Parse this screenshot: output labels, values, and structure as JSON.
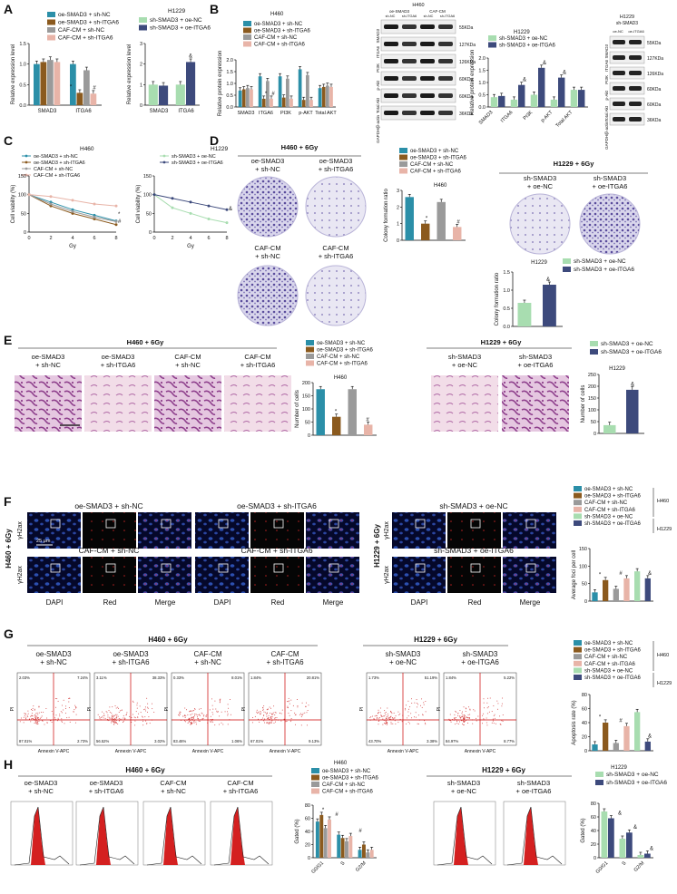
{
  "colors": {
    "c1": "#2B8FA8",
    "c2": "#8B5A1E",
    "c3": "#9A9A9A",
    "c4": "#E8B4A8",
    "g1": "#A8DDB0",
    "g2": "#3D4A7C",
    "bar": "#bb1d1d"
  },
  "legend_h460": [
    "oe-SMAD3 + sh-NC",
    "oe-SMAD3 + sh-ITGA6",
    "CAF-CM + sh-NC",
    "CAF-CM + sh-ITGA6"
  ],
  "legend_h1229": [
    "sh-SMAD3 + oe-NC",
    "sh-SMAD3 + oe-ITGA6"
  ],
  "cell_h460": "H460",
  "cell_h1229": "H1229",
  "panelA": {
    "letter": "A",
    "ylabel": "Relative expression level",
    "xcats": [
      "SMAD3",
      "ITGA6"
    ],
    "sig": [
      "*",
      "#"
    ],
    "sig2": [
      "&"
    ]
  },
  "panelB": {
    "letter": "B",
    "ylabel": "Relative protein expression",
    "xcats": [
      "SMAD3",
      "ITGA6",
      "PI3K",
      "p-AKT",
      "Total AKT"
    ],
    "sig": [
      "*",
      "#"
    ],
    "sig2": [
      "&"
    ],
    "blot_left_header": [
      "H460",
      "oe-SMAD3",
      "CAF-CM",
      "sh-NC",
      "sh-ITGA6",
      "sh-NC",
      "sh-ITGA6"
    ],
    "blot_rows": [
      "SMAD3",
      "ITGA6",
      "PI3K",
      "p-Akt",
      "Total Akt",
      "GAPDH/β-actin"
    ],
    "blot_kda": [
      "55KDa",
      "127KDa",
      "126KDa",
      "60KDa",
      "60KDa",
      "36KDa"
    ],
    "blot_right_header": [
      "H1229",
      "sh-SMAD3",
      "oe-NC",
      "oe-ITGA6"
    ]
  },
  "panelC": {
    "letter": "C",
    "ylabel": "Cell viability (%)",
    "xlabel": "Gy",
    "xticks": [
      "0",
      "2",
      "4",
      "6",
      "8"
    ],
    "yticks": [
      "0",
      "50",
      "100",
      "150"
    ],
    "sig": [
      "*",
      "#"
    ],
    "sig2": [
      "&"
    ]
  },
  "panelD": {
    "letter": "D",
    "title_h460": "H460 + 6Gy",
    "title_h1229": "H1229 + 6Gy",
    "labels": [
      "oe-SMAD3\n+ sh-NC",
      "oe-SMAD3\n+ sh-ITGA6",
      "CAF-CM\n+ sh-NC",
      "CAF-CM\n+ sh-ITGA6"
    ],
    "labels_h1229": [
      "sh-SMAD3\n+ oe-NC",
      "sh-SMAD3\n+ oe-ITGA6"
    ],
    "ylabel": "Colony formation ratio",
    "yticks": [
      "0",
      "1",
      "2",
      "3"
    ],
    "yticks2": [
      "0.0",
      "0.5",
      "1.0",
      "1.5"
    ],
    "sig": [
      "*",
      "#"
    ],
    "sig2": [
      "&"
    ]
  },
  "panelE": {
    "letter": "E",
    "title_h460": "H460 + 6Gy",
    "title_h1229": "H1229 + 6Gy",
    "labels": [
      "oe-SMAD3\n+ sh-NC",
      "oe-SMAD3\n+ sh-ITGA6",
      "CAF-CM\n+ sh-NC",
      "CAF-CM\n+ sh-ITGA6"
    ],
    "labels_h1229": [
      "sh-SMAD3\n+ oe-NC",
      "sh-SMAD3\n+ oe-ITGA6"
    ],
    "ylabel": "Number of cells",
    "yticks": [
      "0",
      "50",
      "100",
      "150",
      "200"
    ],
    "yticks2": [
      "0",
      "50",
      "100",
      "150",
      "200",
      "250"
    ],
    "sig": [
      "*",
      "#"
    ],
    "sig2": [
      "&"
    ]
  },
  "panelF": {
    "letter": "F",
    "groups": [
      "oe-SMAD3 + sh-NC",
      "oe-SMAD3 + sh-ITGA6",
      "CAF-CM + sh-NC",
      "CAF-CM + sh-ITGA6",
      "sh-SMAD3 + oe-NC",
      "sh-SMAD3 + oe-ITGA6"
    ],
    "cols": [
      "DAPI",
      "Red",
      "Merge"
    ],
    "scale": "25 μm",
    "row_label": "H460 + 6Gy",
    "row_label2": "H1229 + 6Gy",
    "marker": "γH2ax",
    "ylabel": "Average foci per cell",
    "yticks": [
      "0",
      "50",
      "100",
      "150"
    ],
    "sig": [
      "*",
      "#"
    ],
    "sig2": [
      "&"
    ]
  },
  "panelG": {
    "letter": "G",
    "title_h460": "H460 + 6Gy",
    "title_h1229": "H1229 + 6Gy",
    "labels": [
      "oe-SMAD3\n+ sh-NC",
      "oe-SMAD3\n+ sh-ITGA6",
      "CAF-CM\n+ sh-NC",
      "CAF-CM\n+ sh-ITGA6",
      "sh-SMAD3\n+ oe-NC",
      "sh-SMAD3\n+ oe-ITGA6"
    ],
    "xlab": "Annexin V-APC",
    "ylab": "PI",
    "quads": [
      [
        "2.03%",
        "7.24%",
        "87.01%",
        "2.73%"
      ],
      [
        "3.11%",
        "38.33%",
        "56.52%",
        "3.02%"
      ],
      [
        "0.33%",
        "8.01%",
        "83.46%",
        "1.06%"
      ],
      [
        "1.84%",
        "20.81%",
        "67.01%",
        "9.13%"
      ],
      [
        "1.73%",
        "51.19%",
        "43.70%",
        "3.38%"
      ],
      [
        "1.84%",
        "5.22%",
        "84.97%",
        "8.77%"
      ]
    ],
    "ylabel": "Apoptosis rate (%)",
    "yticks": [
      "0",
      "20",
      "40",
      "60",
      "80"
    ],
    "sig": [
      "*",
      "#"
    ],
    "sig2": [
      "&"
    ]
  },
  "panelH": {
    "letter": "H",
    "title_h460": "H460 + 6Gy",
    "title_h1229": "H1229 + 6Gy",
    "labels": [
      "oe-SMAD3\n+ sh-NC",
      "oe-SMAD3\n+ sh-ITGA6",
      "CAF-CM\n+ sh-NC",
      "CAF-CM\n+ sh-ITGA6",
      "sh-SMAD3\n+ oe-NC",
      "sh-SMAD3\n+ oe-ITGA6"
    ],
    "xcats": [
      "G0/G1",
      "S",
      "G2/M"
    ],
    "ylabel": "Gated (%)",
    "yticks": [
      "0",
      "20",
      "40",
      "60",
      "80"
    ],
    "sig": [
      "*",
      "#"
    ],
    "sig2": [
      "&"
    ]
  },
  "chart_data": [
    {
      "type": "bar",
      "panel": "A",
      "title": "H460",
      "categories": [
        "SMAD3",
        "ITGA6"
      ],
      "ylim": [
        0,
        1.5
      ],
      "series": [
        {
          "name": "oe-SMAD3 + sh-NC",
          "values": [
            1.0,
            1.0
          ]
        },
        {
          "name": "oe-SMAD3 + sh-ITGA6",
          "values": [
            1.05,
            0.3
          ]
        },
        {
          "name": "CAF-CM + sh-NC",
          "values": [
            1.1,
            0.85
          ]
        },
        {
          "name": "CAF-CM + sh-ITGA6",
          "values": [
            1.05,
            0.28
          ]
        }
      ]
    },
    {
      "type": "bar",
      "panel": "A",
      "title": "H1229",
      "categories": [
        "SMAD3",
        "ITGA6"
      ],
      "ylim": [
        0,
        3
      ],
      "series": [
        {
          "name": "sh-SMAD3 + oe-NC",
          "values": [
            1.0,
            1.0
          ]
        },
        {
          "name": "sh-SMAD3 + oe-ITGA6",
          "values": [
            0.95,
            2.1
          ]
        }
      ]
    },
    {
      "type": "bar",
      "panel": "B",
      "title": "H460",
      "categories": [
        "SMAD3",
        "ITGA6",
        "PI3K",
        "p-AKT",
        "Total AKT"
      ],
      "ylim": [
        0,
        2
      ],
      "series": [
        {
          "name": "oe-SMAD3 + sh-NC",
          "values": [
            0.7,
            1.3,
            1.3,
            1.6,
            0.8
          ]
        },
        {
          "name": "oe-SMAD3 + sh-ITGA6",
          "values": [
            0.75,
            0.35,
            0.4,
            0.3,
            0.85
          ]
        },
        {
          "name": "CAF-CM + sh-NC",
          "values": [
            0.8,
            1.1,
            1.2,
            1.35,
            0.9
          ]
        },
        {
          "name": "CAF-CM + sh-ITGA6",
          "values": [
            0.75,
            0.35,
            0.35,
            0.3,
            0.85
          ]
        }
      ]
    },
    {
      "type": "bar",
      "panel": "B",
      "title": "H1229",
      "categories": [
        "SMAD3",
        "ITGA6",
        "PI3K",
        "p-AKT",
        "Total AKT"
      ],
      "ylim": [
        0,
        2
      ],
      "series": [
        {
          "name": "sh-SMAD3 + oe-NC",
          "values": [
            0.4,
            0.3,
            0.5,
            0.3,
            0.7
          ]
        },
        {
          "name": "sh-SMAD3 + oe-ITGA6",
          "values": [
            0.45,
            0.9,
            1.6,
            1.2,
            0.7
          ]
        }
      ]
    },
    {
      "type": "line",
      "panel": "C",
      "title": "H460",
      "x": [
        0,
        2,
        4,
        6,
        8
      ],
      "ylim": [
        0,
        150
      ],
      "series": [
        {
          "name": "oe-SMAD3 + sh-NC",
          "values": [
            100,
            80,
            60,
            45,
            30
          ]
        },
        {
          "name": "oe-SMAD3 + sh-ITGA6",
          "values": [
            100,
            70,
            50,
            35,
            20
          ]
        },
        {
          "name": "CAF-CM + sh-NC",
          "values": [
            100,
            75,
            55,
            40,
            28
          ]
        },
        {
          "name": "CAF-CM + sh-ITGA6",
          "values": [
            100,
            95,
            85,
            75,
            70
          ]
        }
      ]
    },
    {
      "type": "line",
      "panel": "C",
      "title": "H1229",
      "x": [
        0,
        2,
        4,
        6,
        8
      ],
      "ylim": [
        0,
        150
      ],
      "series": [
        {
          "name": "sh-SMAD3 + oe-NC",
          "values": [
            100,
            65,
            50,
            35,
            25
          ]
        },
        {
          "name": "sh-SMAD3 + oe-ITGA6",
          "values": [
            100,
            90,
            80,
            70,
            60
          ]
        }
      ]
    },
    {
      "type": "bar",
      "panel": "D",
      "title": "H460",
      "categories": [
        "oe-SMAD3 + sh-NC",
        "oe-SMAD3 + sh-ITGA6",
        "CAF-CM + sh-NC",
        "CAF-CM + sh-ITGA6"
      ],
      "values": [
        2.6,
        1.0,
        2.3,
        0.8
      ],
      "ylim": [
        0,
        3
      ]
    },
    {
      "type": "bar",
      "panel": "D",
      "title": "H1229",
      "categories": [
        "sh-SMAD3 + oe-NC",
        "sh-SMAD3 + oe-ITGA6"
      ],
      "values": [
        0.65,
        1.15
      ],
      "ylim": [
        0,
        1.5
      ]
    },
    {
      "type": "bar",
      "panel": "E",
      "title": "H460",
      "categories": [
        "oe-SMAD3 + sh-NC",
        "oe-SMAD3 + sh-ITGA6",
        "CAF-CM + sh-NC",
        "CAF-CM + sh-ITGA6"
      ],
      "values": [
        175,
        70,
        175,
        40
      ],
      "ylim": [
        0,
        200
      ]
    },
    {
      "type": "bar",
      "panel": "E",
      "title": "H1229",
      "categories": [
        "sh-SMAD3 + oe-NC",
        "sh-SMAD3 + oe-ITGA6"
      ],
      "values": [
        35,
        185
      ],
      "ylim": [
        0,
        250
      ]
    },
    {
      "type": "bar",
      "panel": "F",
      "categories": [
        "oe-SMAD3 + sh-NC",
        "oe-SMAD3 + sh-ITGA6",
        "CAF-CM + sh-NC",
        "CAF-CM + sh-ITGA6",
        "sh-SMAD3 + oe-NC",
        "sh-SMAD3 + oe-ITGA6"
      ],
      "values": [
        25,
        60,
        35,
        65,
        85,
        65
      ],
      "ylim": [
        0,
        150
      ]
    },
    {
      "type": "bar",
      "panel": "G",
      "categories": [
        "oe-SMAD3 + sh-NC",
        "oe-SMAD3 + sh-ITGA6",
        "CAF-CM + sh-NC",
        "CAF-CM + sh-ITGA6",
        "sh-SMAD3 + oe-NC",
        "sh-SMAD3 + oe-ITGA6"
      ],
      "values": [
        9,
        40,
        11,
        35,
        55,
        13
      ],
      "ylim": [
        0,
        80
      ]
    },
    {
      "type": "bar",
      "panel": "H",
      "title": "H460",
      "categories": [
        "G0/G1",
        "S",
        "G2/M"
      ],
      "ylim": [
        0,
        80
      ],
      "series": [
        {
          "name": "oe-SMAD3 + sh-NC",
          "values": [
            55,
            35,
            12
          ]
        },
        {
          "name": "oe-SMAD3 + sh-ITGA6",
          "values": [
            65,
            30,
            20
          ]
        },
        {
          "name": "CAF-CM + sh-NC",
          "values": [
            45,
            25,
            8
          ]
        },
        {
          "name": "CAF-CM + sh-ITGA6",
          "values": [
            58,
            33,
            12
          ]
        }
      ]
    },
    {
      "type": "bar",
      "panel": "H",
      "title": "H1229",
      "categories": [
        "G0/G1",
        "S",
        "G2/M"
      ],
      "ylim": [
        0,
        80
      ],
      "series": [
        {
          "name": "sh-SMAD3 + oe-NC",
          "values": [
            68,
            28,
            4
          ]
        },
        {
          "name": "sh-SMAD3 + oe-ITGA6",
          "values": [
            58,
            37,
            6
          ]
        }
      ]
    }
  ]
}
